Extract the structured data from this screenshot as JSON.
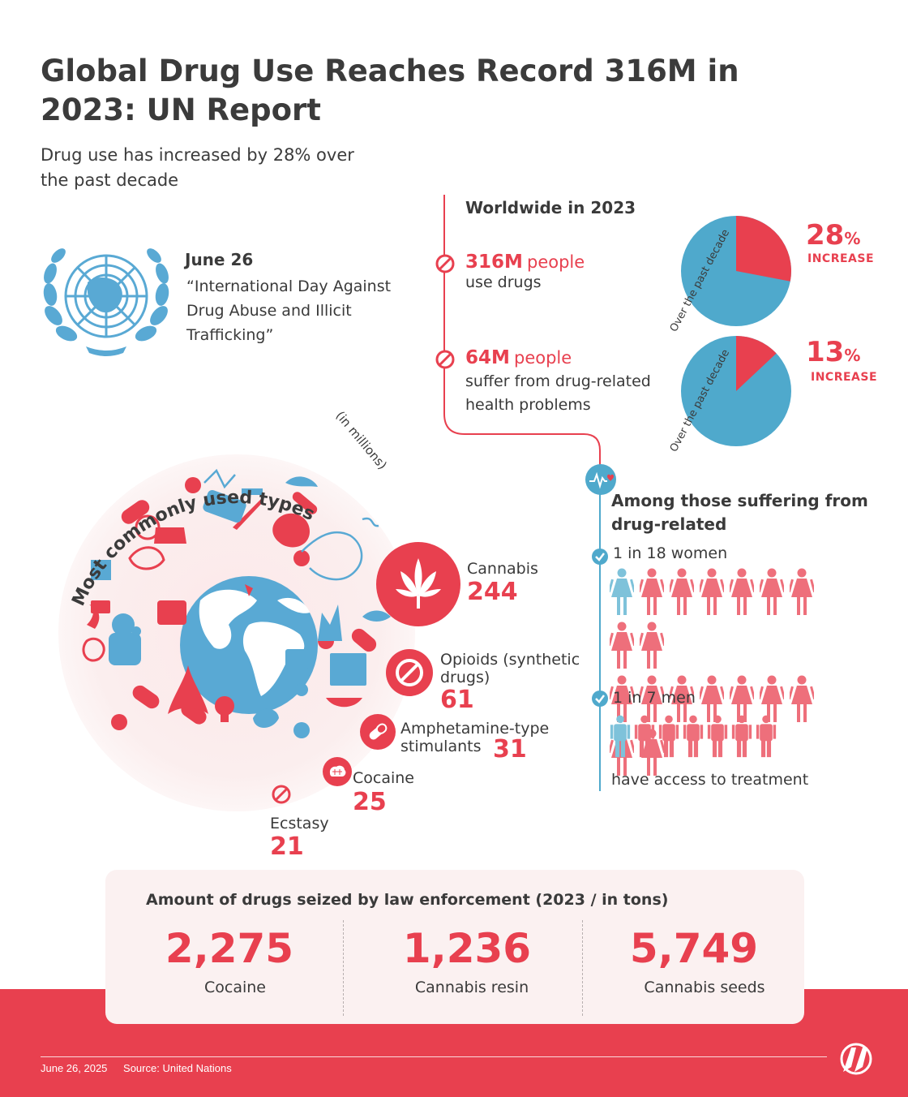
{
  "title": "Global Drug Use Reaches Record 316M in 2023: UN Report",
  "subtitle": "Drug use has increased by 28% over the past decade",
  "un": {
    "date": "June 26",
    "event": "“International Day Against Drug Abuse and Illicit Trafficking”"
  },
  "worldwide": {
    "title": "Worldwide in 2023",
    "stats": [
      {
        "big": "316M",
        "unit": "people",
        "desc": "use drugs"
      },
      {
        "big": "64M",
        "unit": "people",
        "desc": "suffer from drug-related health problems"
      }
    ],
    "pies": [
      {
        "caption": "Over the past decade",
        "number": "28",
        "percent_sign": "%",
        "word": "INCREASE",
        "fraction": 0.28
      },
      {
        "caption": "Over the past decade",
        "number": "13",
        "percent_sign": "%",
        "word": "INCREASE",
        "fraction": 0.13
      }
    ]
  },
  "treatment": {
    "title": "Among those suffering from drug-related",
    "women_ratio": "1 in 18 women",
    "men_ratio": "1 in 7 men",
    "women_total": 18,
    "men_total": 7,
    "footer": "have access to treatment"
  },
  "types": {
    "title": "Most commonly used types",
    "unit": "(in millions)",
    "items": [
      {
        "name": "Cannabis",
        "value": "244"
      },
      {
        "name": "Opioids (synthetic drugs)",
        "value": "61"
      },
      {
        "name": "Amphetamine-type stimulants",
        "value": "31"
      },
      {
        "name": "Cocaine",
        "value": "25"
      },
      {
        "name": "Ecstasy",
        "value": "21"
      }
    ]
  },
  "seized": {
    "title": "Amount of drugs seized by law enforcement (2023 / in tons)",
    "items": [
      {
        "value": "2,275",
        "label": "Cocaine"
      },
      {
        "value": "1,236",
        "label": "Cannabis resin"
      },
      {
        "value": "5,749",
        "label": "Cannabis seeds"
      }
    ]
  },
  "footer": {
    "date": "June 26, 2025",
    "source": "Source: United Nations"
  },
  "colors": {
    "accent": "#e8404f",
    "blue": "#4fa9cc",
    "pink_bg": "#fbeeee",
    "text": "#3b3b3b"
  },
  "icons": [
    "un-emblem-icon",
    "no-symbol-icon",
    "heartbeat-icon",
    "check-icon",
    "woman-icon",
    "man-icon",
    "cannabis-leaf-icon",
    "pill-icon",
    "brain-icon",
    "globe-icon",
    "aa-logo-icon"
  ]
}
